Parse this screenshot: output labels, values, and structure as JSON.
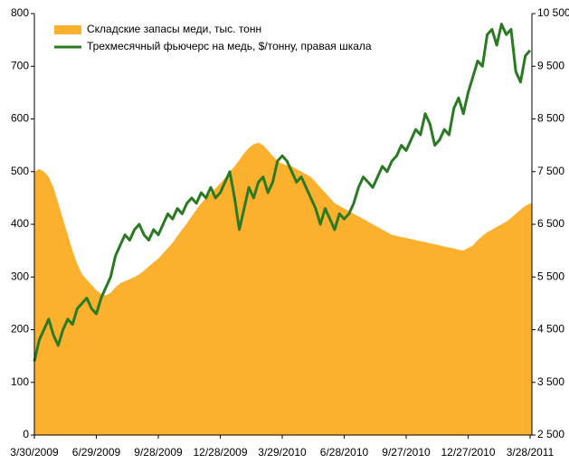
{
  "chart_data": {
    "type": "area-line",
    "categories": [
      "3/30/2009",
      null,
      null,
      null,
      null,
      null,
      null,
      null,
      null,
      null,
      null,
      null,
      null,
      "6/29/2009",
      null,
      null,
      null,
      null,
      null,
      null,
      null,
      null,
      null,
      null,
      null,
      null,
      "9/28/2009",
      null,
      null,
      null,
      null,
      null,
      null,
      null,
      null,
      null,
      null,
      null,
      null,
      "12/28/2009",
      null,
      null,
      null,
      null,
      null,
      null,
      null,
      null,
      null,
      null,
      null,
      null,
      "3/29/2010",
      null,
      null,
      null,
      null,
      null,
      null,
      null,
      null,
      null,
      null,
      null,
      null,
      "6/28/2010",
      null,
      null,
      null,
      null,
      null,
      null,
      null,
      null,
      null,
      null,
      null,
      null,
      "9/27/2010",
      null,
      null,
      null,
      null,
      null,
      null,
      null,
      null,
      null,
      null,
      null,
      null,
      "12/27/2010",
      null,
      null,
      null,
      null,
      null,
      null,
      null,
      null,
      null,
      null,
      null,
      null,
      "3/28/2011"
    ],
    "series": [
      {
        "name": "Складские запасы меди, тыс. тонн",
        "color": "#fbb12e",
        "kind": "area",
        "values": [
          500,
          505,
          500,
          490,
          470,
          440,
          410,
          380,
          350,
          325,
          305,
          295,
          285,
          275,
          268,
          265,
          270,
          280,
          288,
          292,
          296,
          300,
          305,
          312,
          320,
          328,
          335,
          345,
          355,
          365,
          378,
          390,
          402,
          415,
          428,
          440,
          450,
          460,
          468,
          478,
          488,
          500,
          510,
          522,
          535,
          545,
          552,
          555,
          550,
          540,
          530,
          520,
          515,
          512,
          510,
          505,
          500,
          495,
          490,
          480,
          470,
          460,
          450,
          440,
          435,
          430,
          425,
          420,
          415,
          410,
          405,
          400,
          395,
          390,
          385,
          380,
          378,
          376,
          374,
          372,
          370,
          368,
          366,
          364,
          362,
          360,
          358,
          356,
          354,
          352,
          350,
          355,
          360,
          370,
          378,
          385,
          390,
          395,
          400,
          405,
          412,
          420,
          428,
          435,
          440
        ]
      },
      {
        "name": "Трехмесячный фьючерс на медь, $/тонну, правая шкала",
        "color": "#2a7a22",
        "kind": "line",
        "axis": "y2",
        "values": [
          3900,
          4300,
          4500,
          4700,
          4400,
          4200,
          4500,
          4700,
          4600,
          4900,
          5000,
          5100,
          4900,
          4800,
          5100,
          5300,
          5500,
          5900,
          6100,
          6300,
          6200,
          6400,
          6500,
          6300,
          6200,
          6400,
          6300,
          6500,
          6700,
          6600,
          6800,
          6700,
          6900,
          7000,
          6900,
          7100,
          7000,
          7200,
          7000,
          7100,
          7300,
          7500,
          7000,
          6400,
          6800,
          7200,
          7000,
          7300,
          7400,
          7100,
          7300,
          7700,
          7800,
          7700,
          7500,
          7300,
          7400,
          7200,
          7000,
          6800,
          6500,
          6800,
          6600,
          6400,
          6700,
          6600,
          6700,
          6900,
          7200,
          7400,
          7300,
          7200,
          7400,
          7600,
          7500,
          7700,
          7800,
          8000,
          7900,
          8100,
          8300,
          8200,
          8600,
          8400,
          8000,
          8100,
          8300,
          8200,
          8700,
          8900,
          8600,
          9000,
          9300,
          9600,
          9500,
          10100,
          10200,
          9900,
          10300,
          10100,
          10200,
          9400,
          9200,
          9700,
          9800
        ]
      }
    ],
    "ylim": [
      0,
      800
    ],
    "yticks": [
      0,
      100,
      200,
      300,
      400,
      500,
      600,
      700,
      800
    ],
    "y2lim": [
      2500,
      10500
    ],
    "y2ticks": [
      {
        "value": 2500,
        "label": "2 500"
      },
      {
        "value": 3500,
        "label": "3 500"
      },
      {
        "value": 4500,
        "label": "4 500"
      },
      {
        "value": 5500,
        "label": "5 500"
      },
      {
        "value": 6500,
        "label": "6 500"
      },
      {
        "value": 7500,
        "label": "7 500"
      },
      {
        "value": 8500,
        "label": "8 500"
      },
      {
        "value": 9500,
        "label": "9 500"
      },
      {
        "value": 10500,
        "label": "10 500"
      }
    ],
    "legend": "top-left",
    "grid": false
  }
}
